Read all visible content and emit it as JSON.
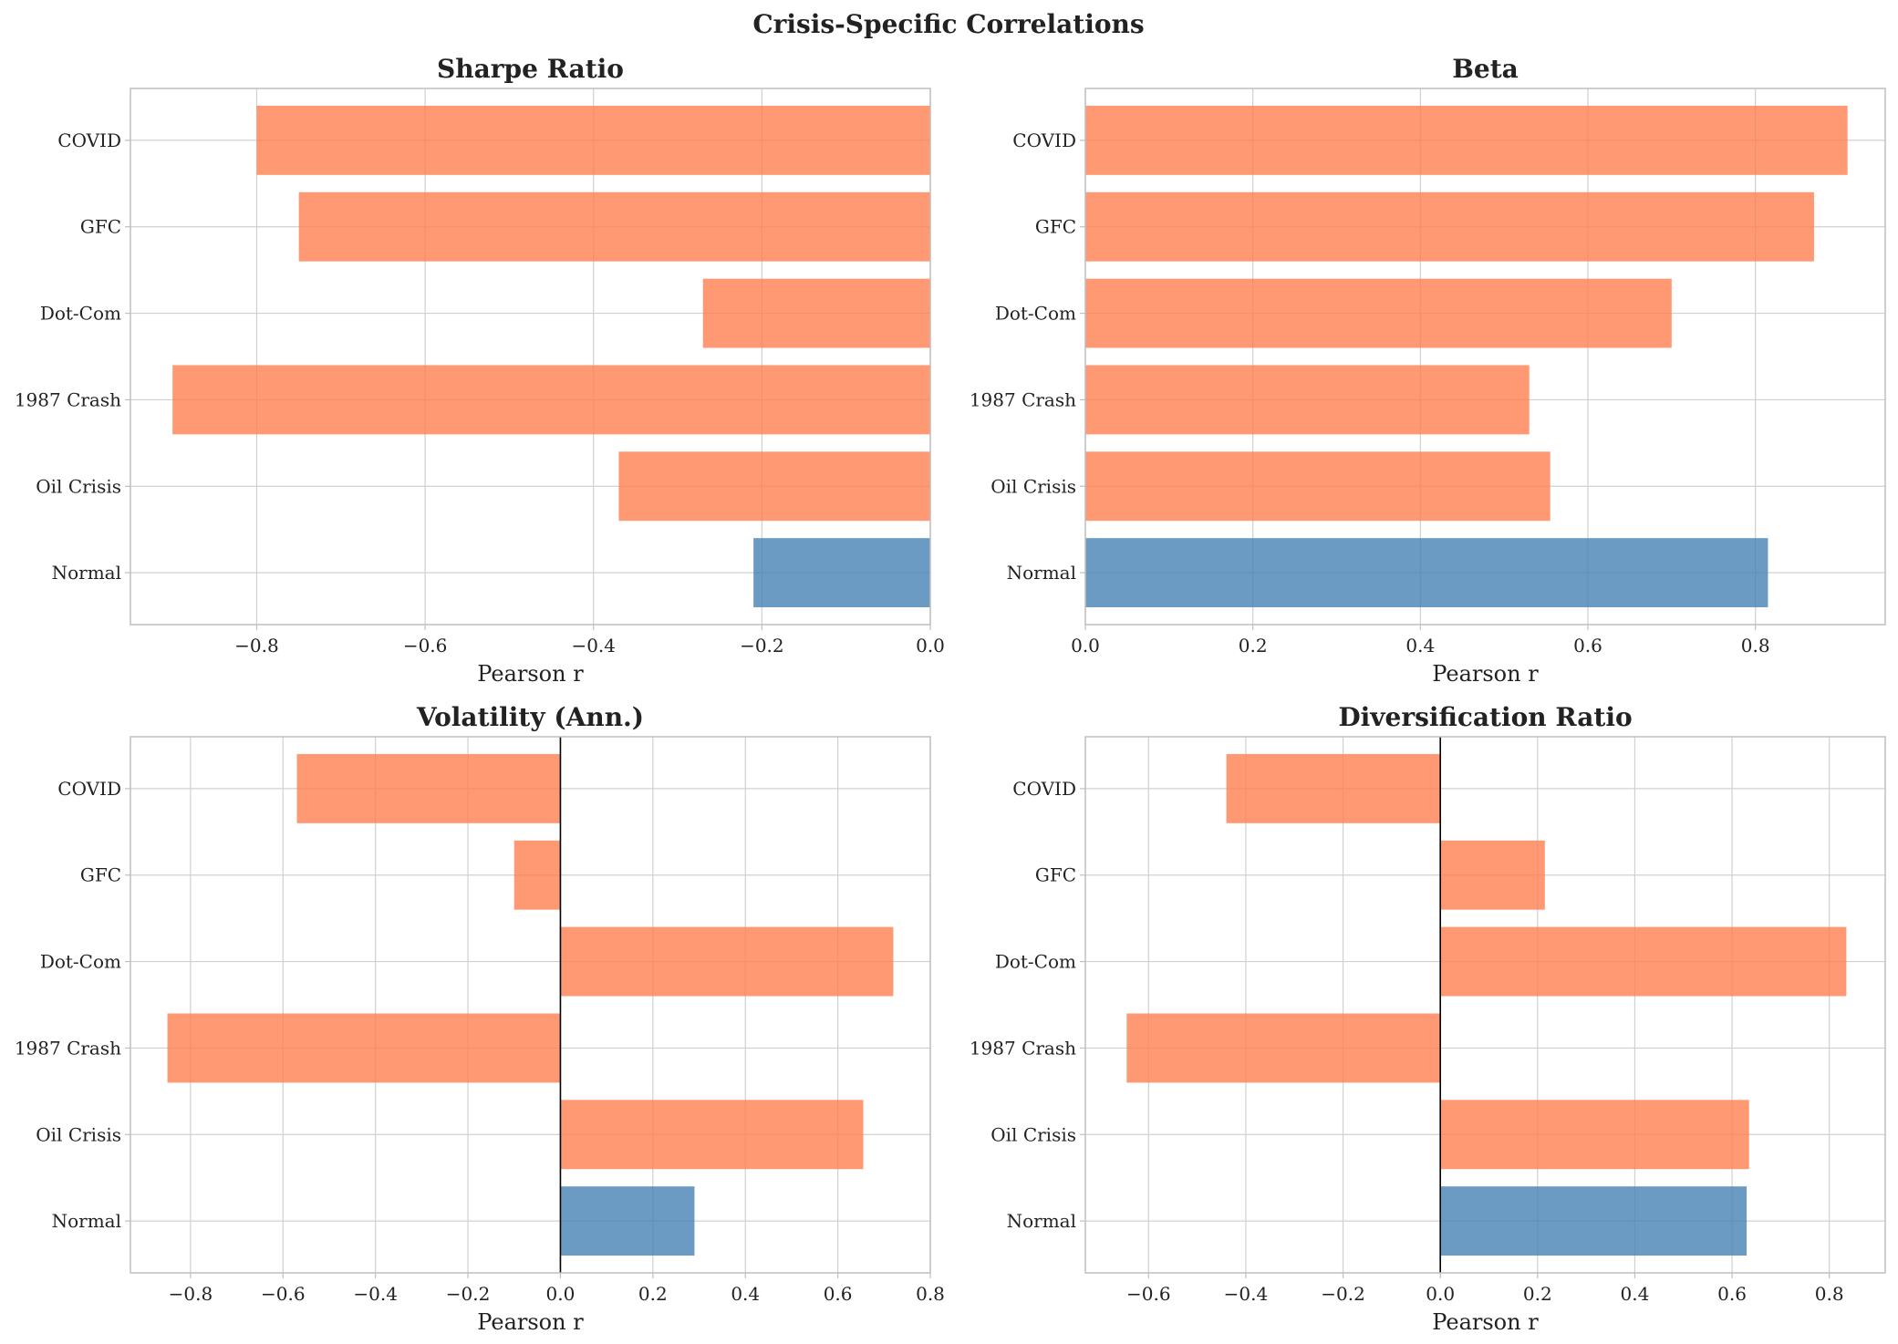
{
  "figure": {
    "title": "Crisis-Specific Correlations"
  },
  "colors": {
    "crisis": "#ff7f50",
    "normal": "#4682b4",
    "grid": "#d0d0d0",
    "frame": "#bfbfbf"
  },
  "chart_data": [
    {
      "type": "bar",
      "orientation": "horizontal",
      "title": "Sharpe Ratio",
      "xlabel": "Pearson r",
      "categories": [
        "COVID",
        "GFC",
        "Dot-Com",
        "1987 Crash",
        "Oil Crisis",
        "Normal"
      ],
      "values": [
        -0.8,
        -0.75,
        -0.27,
        -0.9,
        -0.37,
        -0.21
      ],
      "xlim": [
        -0.95,
        0.0
      ],
      "xticks": [
        -0.8,
        -0.6,
        -0.4,
        -0.2,
        0.0
      ],
      "xtick_labels": [
        "−0.8",
        "−0.6",
        "−0.4",
        "−0.2",
        "0.0"
      ],
      "zero_line": false,
      "grid": true
    },
    {
      "type": "bar",
      "orientation": "horizontal",
      "title": "Beta",
      "xlabel": "Pearson r",
      "categories": [
        "COVID",
        "GFC",
        "Dot-Com",
        "1987 Crash",
        "Oil Crisis",
        "Normal"
      ],
      "values": [
        0.91,
        0.87,
        0.7,
        0.53,
        0.555,
        0.815
      ],
      "xlim": [
        0.0,
        0.955
      ],
      "xticks": [
        0.0,
        0.2,
        0.4,
        0.6,
        0.8
      ],
      "xtick_labels": [
        "0.0",
        "0.2",
        "0.4",
        "0.6",
        "0.8"
      ],
      "zero_line": false,
      "grid": true
    },
    {
      "type": "bar",
      "orientation": "horizontal",
      "title": "Volatility (Ann.)",
      "xlabel": "Pearson r",
      "categories": [
        "COVID",
        "GFC",
        "Dot-Com",
        "1987 Crash",
        "Oil Crisis",
        "Normal"
      ],
      "values": [
        -0.57,
        -0.1,
        0.72,
        -0.85,
        0.655,
        0.29
      ],
      "xlim": [
        -0.93,
        0.8
      ],
      "xticks": [
        -0.8,
        -0.6,
        -0.4,
        -0.2,
        0.0,
        0.2,
        0.4,
        0.6,
        0.8
      ],
      "xtick_labels": [
        "−0.8",
        "−0.6",
        "−0.4",
        "−0.2",
        "0.0",
        "0.2",
        "0.4",
        "0.6",
        "0.8"
      ],
      "zero_line": true,
      "grid": true
    },
    {
      "type": "bar",
      "orientation": "horizontal",
      "title": "Diversification Ratio",
      "xlabel": "Pearson r",
      "categories": [
        "COVID",
        "GFC",
        "Dot-Com",
        "1987 Crash",
        "Oil Crisis",
        "Normal"
      ],
      "values": [
        -0.44,
        0.215,
        0.835,
        -0.645,
        0.635,
        0.63
      ],
      "xlim": [
        -0.73,
        0.915
      ],
      "xticks": [
        -0.6,
        -0.4,
        -0.2,
        0.0,
        0.2,
        0.4,
        0.6,
        0.8
      ],
      "xtick_labels": [
        "−0.6",
        "−0.4",
        "−0.2",
        "0.0",
        "0.2",
        "0.4",
        "0.6",
        "0.8"
      ],
      "zero_line": true,
      "grid": true
    }
  ]
}
